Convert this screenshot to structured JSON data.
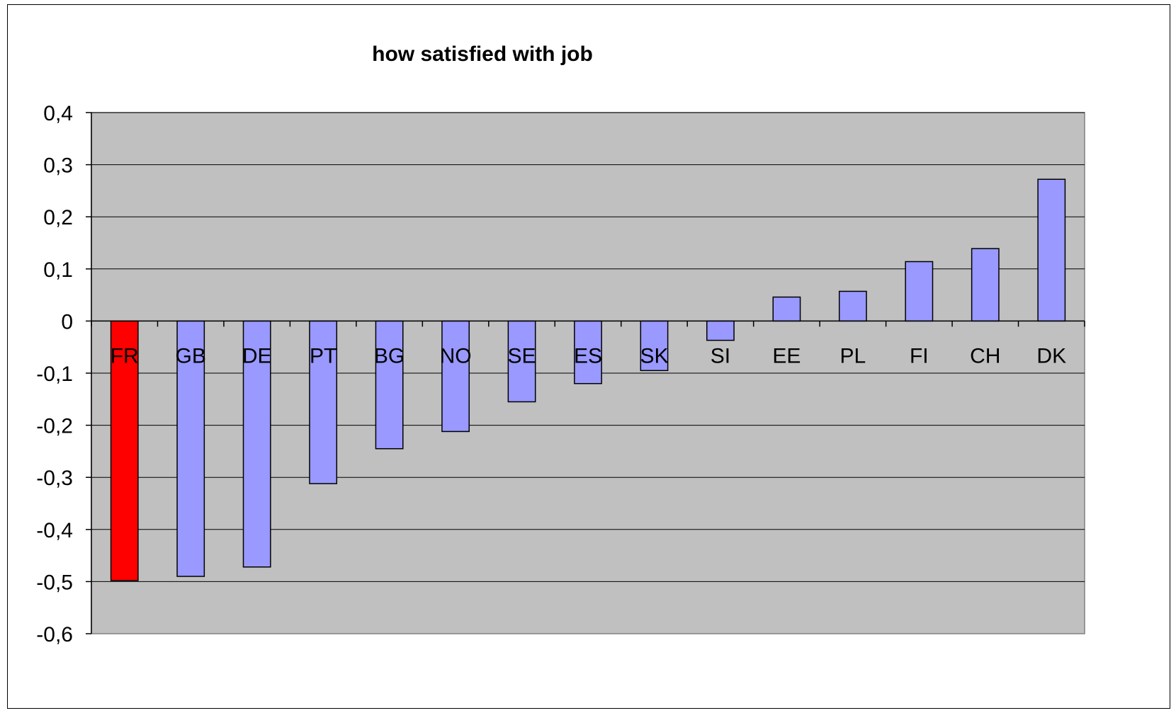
{
  "chart_data": {
    "type": "bar",
    "title": "how satisfied with job",
    "xlabel": "",
    "ylabel": "",
    "categories": [
      "FR",
      "GB",
      "DE",
      "PT",
      "BG",
      "NO",
      "SE",
      "ES",
      "SK",
      "SI",
      "EE",
      "PL",
      "FI",
      "CH",
      "DK"
    ],
    "values": [
      -0.498,
      -0.49,
      -0.472,
      -0.312,
      -0.245,
      -0.212,
      -0.155,
      -0.12,
      -0.095,
      -0.037,
      0.046,
      0.057,
      0.114,
      0.139,
      0.272
    ],
    "ylim": [
      -0.6,
      0.4
    ],
    "yticks": [
      0.4,
      0.3,
      0.2,
      0.1,
      0,
      -0.1,
      -0.2,
      -0.3,
      -0.4,
      -0.5,
      -0.6
    ],
    "ytick_labels": [
      "0,4",
      "0,3",
      "0,2",
      "0,1",
      "0",
      "-0,1",
      "-0,2",
      "-0,3",
      "-0,4",
      "-0,5",
      "-0,6"
    ],
    "grid": true,
    "legend": "none",
    "colors": {
      "plot_background": "#c0c0c0",
      "bar_default": "#9999ff",
      "bar_highlight": "#ff0000",
      "gridline": "#000000"
    },
    "highlight_category": "FR"
  }
}
